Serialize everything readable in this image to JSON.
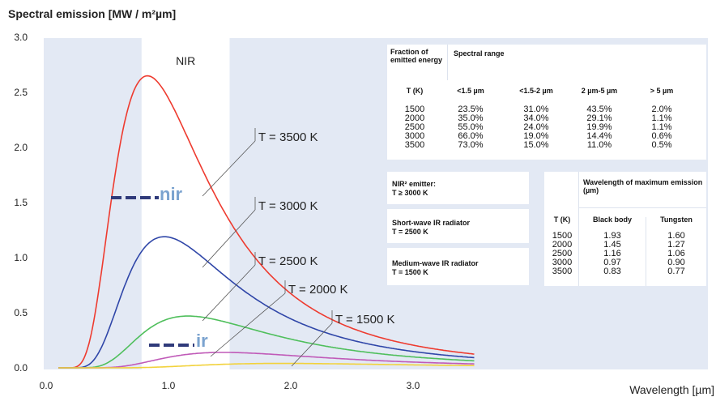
{
  "chart_data": {
    "type": "line",
    "title": "Spectral emission [MW / m²µm]",
    "xlabel": "Wavelength [µm]",
    "ylabel": "Spectral emission [MW / m²µm]",
    "xlim": [
      0.0,
      3.5
    ],
    "ylim": [
      0.0,
      3.0
    ],
    "x_ticks": [
      "0.0",
      "1.0",
      "2.0",
      "3.0"
    ],
    "y_ticks": [
      "0.0",
      "0.5",
      "1.0",
      "1.5",
      "2.0",
      "2.5",
      "3.0"
    ],
    "grid": false,
    "band_label": "NIR",
    "band_range": [
      0.78,
      1.5
    ],
    "series": [
      {
        "name": "T = 3500 K",
        "temperature": 3500,
        "color": "#ee3b2f",
        "peak": [
          0.81,
          2.65
        ]
      },
      {
        "name": "T = 3000 K",
        "temperature": 3000,
        "color": "#2f46a8",
        "peak": [
          0.93,
          1.19
        ]
      },
      {
        "name": "T = 2500 K",
        "temperature": 2500,
        "color": "#4fbf5c",
        "peak": [
          1.06,
          0.47
        ]
      },
      {
        "name": "T = 2000 K",
        "temperature": 2000,
        "color": "#c05ab8",
        "peak": [
          1.28,
          0.14
        ]
      },
      {
        "name": "T = 1500 K",
        "temperature": 1500,
        "color": "#f2d23c",
        "peak": [
          1.5,
          0.04
        ]
      }
    ],
    "annotations": [
      {
        "text": "nir",
        "color": "#7ba3cf"
      },
      {
        "text": "ir",
        "color": "#7ba3cf"
      }
    ]
  },
  "table_fraction": {
    "col0_header": "Fraction of emitted energy",
    "spectral_range_header": "Spectral range",
    "t_header": "T (K)",
    "ranges": [
      "<1.5 µm",
      "<1.5-2 µm",
      "2 µm-5 µm",
      "> 5 µm"
    ],
    "rows": [
      [
        "1500",
        "23.5%",
        "31.0%",
        "43.5%",
        "2.0%"
      ],
      [
        "2000",
        "35.0%",
        "34.0%",
        "29.1%",
        "1.1%"
      ],
      [
        "2500",
        "55.0%",
        "24.0%",
        "19.9%",
        "1.1%"
      ],
      [
        "3000",
        "66.0%",
        "19.0%",
        "14.4%",
        "0.6%"
      ],
      [
        "3500",
        "73.0%",
        "15.0%",
        "11.0%",
        "0.5%"
      ]
    ]
  },
  "emitters": [
    {
      "title": "NIR² emitter:",
      "sub": "T ≥ 3000 K"
    },
    {
      "title": "Short-wave IR radiator",
      "sub": "T = 2500 K"
    },
    {
      "title": "Medium-wave IR radiator",
      "sub": "T = 1500 K"
    }
  ],
  "table_wavelength": {
    "header": "Wavelength of maximum emission (µm)",
    "t_header": "T (K)",
    "col1": "Black body",
    "col2": "Tungsten",
    "rows": [
      [
        "1500",
        "1.93",
        "1.60"
      ],
      [
        "2000",
        "1.45",
        "1.27"
      ],
      [
        "2500",
        "1.16",
        "1.06"
      ],
      [
        "3000",
        "0.97",
        "0.90"
      ],
      [
        "3500",
        "0.83",
        "0.77"
      ]
    ]
  }
}
